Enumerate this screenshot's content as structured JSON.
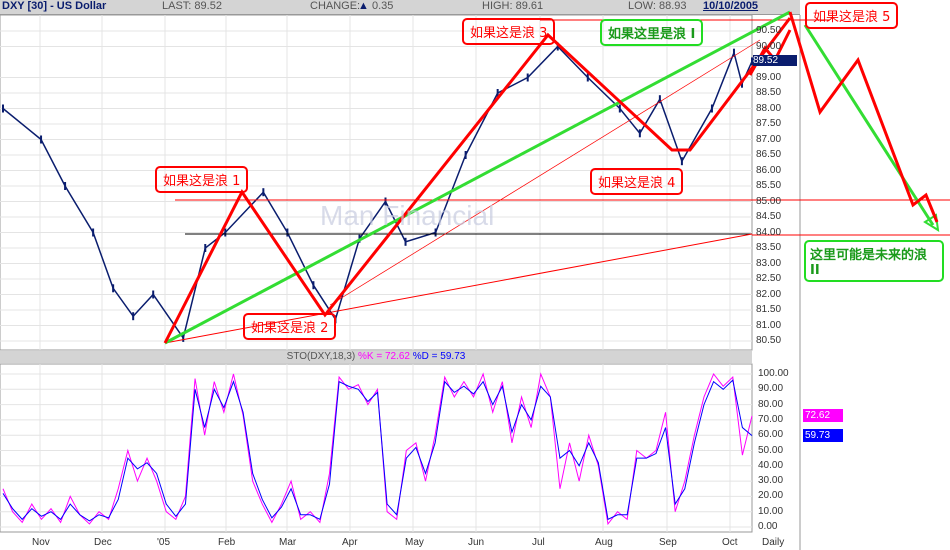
{
  "header": {
    "title": "DXY [30] - US Dollar",
    "last": "LAST: 89.52",
    "change_label": "CHANGE:",
    "change_icon": "triangle-up-icon",
    "change_value": "0.35",
    "high": "HIGH: 89.61",
    "low": "LOW: 88.93",
    "date": "10/10/2005"
  },
  "watermark": "Man Financial",
  "annotations": {
    "wave1": "如果这是浪 1",
    "wave2": "如果这是浪 2",
    "wave3": "如果这是浪 3",
    "wave4": "如果这是浪 4",
    "wave5": "如果这是浪 5",
    "waveI": "如果这里是浪 I",
    "waveII": "这里可能是未来的浪 II"
  },
  "stoch_header": {
    "label": "STO(DXY,18,3)",
    "k": "%K = 72.62",
    "d": "%D = 59.73"
  },
  "colors": {
    "price": "#0a1d6e",
    "k": "#ff00ff",
    "d": "#0000ff",
    "wave_red": "#ff0000",
    "wave_green": "#33dd33"
  },
  "chart_data": [
    {
      "type": "line",
      "title": "DXY [30] - US Dollar",
      "scale": "daily",
      "ylim": [
        80.5,
        90.5
      ],
      "yticks": [
        "90.50",
        "90.00",
        "89.00",
        "88.50",
        "88.00",
        "87.50",
        "87.00",
        "86.50",
        "86.00",
        "85.50",
        "85.00",
        "84.50",
        "84.00",
        "83.50",
        "83.00",
        "82.50",
        "82.00",
        "81.50",
        "81.00",
        "80.50"
      ],
      "last_value_tag": "89.52",
      "x_ticks": [
        "Nov",
        "Dec",
        "'05",
        "Feb",
        "Mar",
        "Apr",
        "May",
        "Jun",
        "Jul",
        "Aug",
        "Sep",
        "Oct",
        "Daily"
      ],
      "series": [
        {
          "points": [
            [
              "2004-10-01",
              88.0
            ],
            [
              "2004-10-20",
              87.0
            ],
            [
              "2004-11-01",
              85.5
            ],
            [
              "2004-11-15",
              84.0
            ],
            [
              "2004-11-25",
              82.2
            ],
            [
              "2004-12-05",
              81.3
            ],
            [
              "2004-12-15",
              82.0
            ],
            [
              "2004-12-30",
              80.6
            ],
            [
              "2005-01-10",
              83.5
            ],
            [
              "2005-01-20",
              84.0
            ],
            [
              "2005-02-08",
              85.3
            ],
            [
              "2005-02-20",
              84.0
            ],
            [
              "2005-03-05",
              82.3
            ],
            [
              "2005-03-16",
              81.2
            ],
            [
              "2005-03-28",
              83.8
            ],
            [
              "2005-04-10",
              85.0
            ],
            [
              "2005-04-20",
              83.7
            ],
            [
              "2005-05-05",
              84.0
            ],
            [
              "2005-05-20",
              86.5
            ],
            [
              "2005-06-05",
              88.5
            ],
            [
              "2005-06-20",
              89.0
            ],
            [
              "2005-07-05",
              90.0
            ],
            [
              "2005-07-20",
              89.0
            ],
            [
              "2005-08-05",
              88.0
            ],
            [
              "2005-08-15",
              87.2
            ],
            [
              "2005-08-25",
              88.3
            ],
            [
              "2005-09-05",
              86.3
            ],
            [
              "2005-09-20",
              88.0
            ],
            [
              "2005-10-01",
              89.8
            ],
            [
              "2005-10-05",
              88.8
            ],
            [
              "2005-10-10",
              89.52
            ]
          ]
        }
      ]
    },
    {
      "type": "line",
      "title": "STO(DXY,18,3)",
      "ylim": [
        0,
        100
      ],
      "yticks": [
        "100.00",
        "90.00",
        "80.00",
        "70.00",
        "60.00",
        "50.00",
        "40.00",
        "30.00",
        "20.00",
        "10.00",
        "0.00"
      ],
      "series": [
        {
          "name": "%K",
          "last": "72.62",
          "values": [
            25,
            10,
            3,
            15,
            5,
            12,
            3,
            20,
            8,
            2,
            10,
            5,
            25,
            50,
            30,
            45,
            30,
            10,
            5,
            20,
            97,
            60,
            95,
            75,
            100,
            73,
            30,
            15,
            3,
            15,
            30,
            5,
            10,
            3,
            35,
            98,
            90,
            93,
            80,
            90,
            10,
            5,
            50,
            55,
            30,
            60,
            98,
            85,
            95,
            85,
            100,
            75,
            95,
            55,
            85,
            65,
            100,
            85,
            25,
            55,
            30,
            60,
            40,
            2,
            10,
            5,
            50,
            45,
            50,
            75,
            10,
            30,
            60,
            85,
            100,
            92,
            98,
            47,
            72.62
          ]
        },
        {
          "name": "%D",
          "last": "59.73",
          "values": [
            22,
            12,
            5,
            12,
            7,
            10,
            5,
            15,
            8,
            4,
            8,
            6,
            18,
            45,
            38,
            42,
            35,
            15,
            7,
            15,
            90,
            65,
            90,
            78,
            95,
            75,
            35,
            18,
            6,
            13,
            25,
            8,
            8,
            5,
            28,
            95,
            92,
            90,
            82,
            88,
            15,
            8,
            45,
            52,
            35,
            55,
            95,
            88,
            92,
            87,
            95,
            80,
            92,
            62,
            80,
            70,
            92,
            85,
            45,
            50,
            40,
            55,
            42,
            5,
            8,
            8,
            45,
            45,
            48,
            65,
            15,
            25,
            55,
            80,
            95,
            90,
            96,
            65,
            59.73
          ]
        }
      ]
    }
  ]
}
